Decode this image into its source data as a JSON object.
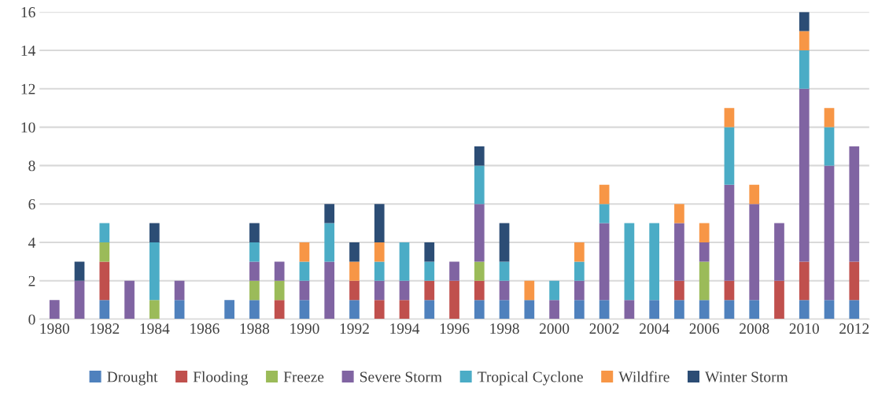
{
  "chart_data": {
    "type": "bar",
    "stacked": true,
    "categories": [
      "1980",
      null,
      "1982",
      null,
      "1984",
      null,
      "1986",
      null,
      "1988",
      null,
      "1990",
      null,
      "1992",
      null,
      "1994",
      null,
      "1996",
      null,
      "1998",
      null,
      "2000",
      null,
      "2002",
      null,
      "2004",
      null,
      "2006",
      null,
      "2008",
      null,
      "2010",
      null,
      "2012"
    ],
    "series": [
      {
        "name": "Drought",
        "color": "#4f81bd",
        "values": [
          0,
          0,
          1,
          0,
          0,
          1,
          0,
          1,
          1,
          0,
          1,
          0,
          1,
          0,
          0,
          1,
          0,
          1,
          1,
          1,
          0,
          1,
          1,
          0,
          1,
          1,
          1,
          1,
          1,
          0,
          1,
          1,
          1
        ]
      },
      {
        "name": "Flooding",
        "color": "#c0504d",
        "values": [
          0,
          0,
          2,
          0,
          0,
          0,
          0,
          0,
          0,
          1,
          0,
          0,
          1,
          1,
          1,
          1,
          2,
          1,
          0,
          0,
          0,
          0,
          0,
          0,
          0,
          1,
          0,
          1,
          0,
          2,
          2,
          0,
          2
        ]
      },
      {
        "name": "Freeze",
        "color": "#9bbb59",
        "values": [
          0,
          0,
          1,
          0,
          1,
          0,
          0,
          0,
          1,
          1,
          0,
          0,
          0,
          0,
          0,
          0,
          0,
          1,
          0,
          0,
          0,
          0,
          0,
          0,
          0,
          0,
          2,
          0,
          0,
          0,
          0,
          0,
          0
        ]
      },
      {
        "name": "Severe Storm",
        "color": "#8064a2",
        "values": [
          1,
          2,
          0,
          2,
          0,
          1,
          0,
          0,
          1,
          1,
          1,
          3,
          0,
          1,
          1,
          0,
          1,
          3,
          1,
          0,
          1,
          1,
          4,
          1,
          0,
          3,
          1,
          5,
          5,
          3,
          9,
          7,
          6
        ]
      },
      {
        "name": "Tropical Cyclone",
        "color": "#4bacc6",
        "values": [
          0,
          0,
          1,
          0,
          3,
          0,
          0,
          0,
          1,
          0,
          1,
          2,
          0,
          1,
          2,
          1,
          0,
          2,
          1,
          0,
          1,
          1,
          1,
          4,
          4,
          0,
          0,
          3,
          0,
          0,
          2,
          2,
          0
        ]
      },
      {
        "name": "Wildfire",
        "color": "#f79646",
        "values": [
          0,
          0,
          0,
          0,
          0,
          0,
          0,
          0,
          0,
          0,
          1,
          0,
          1,
          1,
          0,
          0,
          0,
          0,
          0,
          1,
          0,
          1,
          1,
          0,
          0,
          1,
          1,
          1,
          1,
          0,
          1,
          1,
          0
        ]
      },
      {
        "name": "Winter Storm",
        "color": "#2c4d75",
        "values": [
          0,
          1,
          0,
          0,
          1,
          0,
          0,
          0,
          1,
          0,
          0,
          1,
          1,
          2,
          0,
          1,
          0,
          1,
          2,
          0,
          0,
          0,
          0,
          0,
          0,
          0,
          0,
          0,
          0,
          0,
          1,
          0,
          0
        ]
      }
    ],
    "ylim": [
      0,
      16
    ],
    "yticks": [
      0,
      2,
      4,
      6,
      8,
      10,
      12,
      14,
      16
    ],
    "grid": "y",
    "legend": "bottom"
  }
}
